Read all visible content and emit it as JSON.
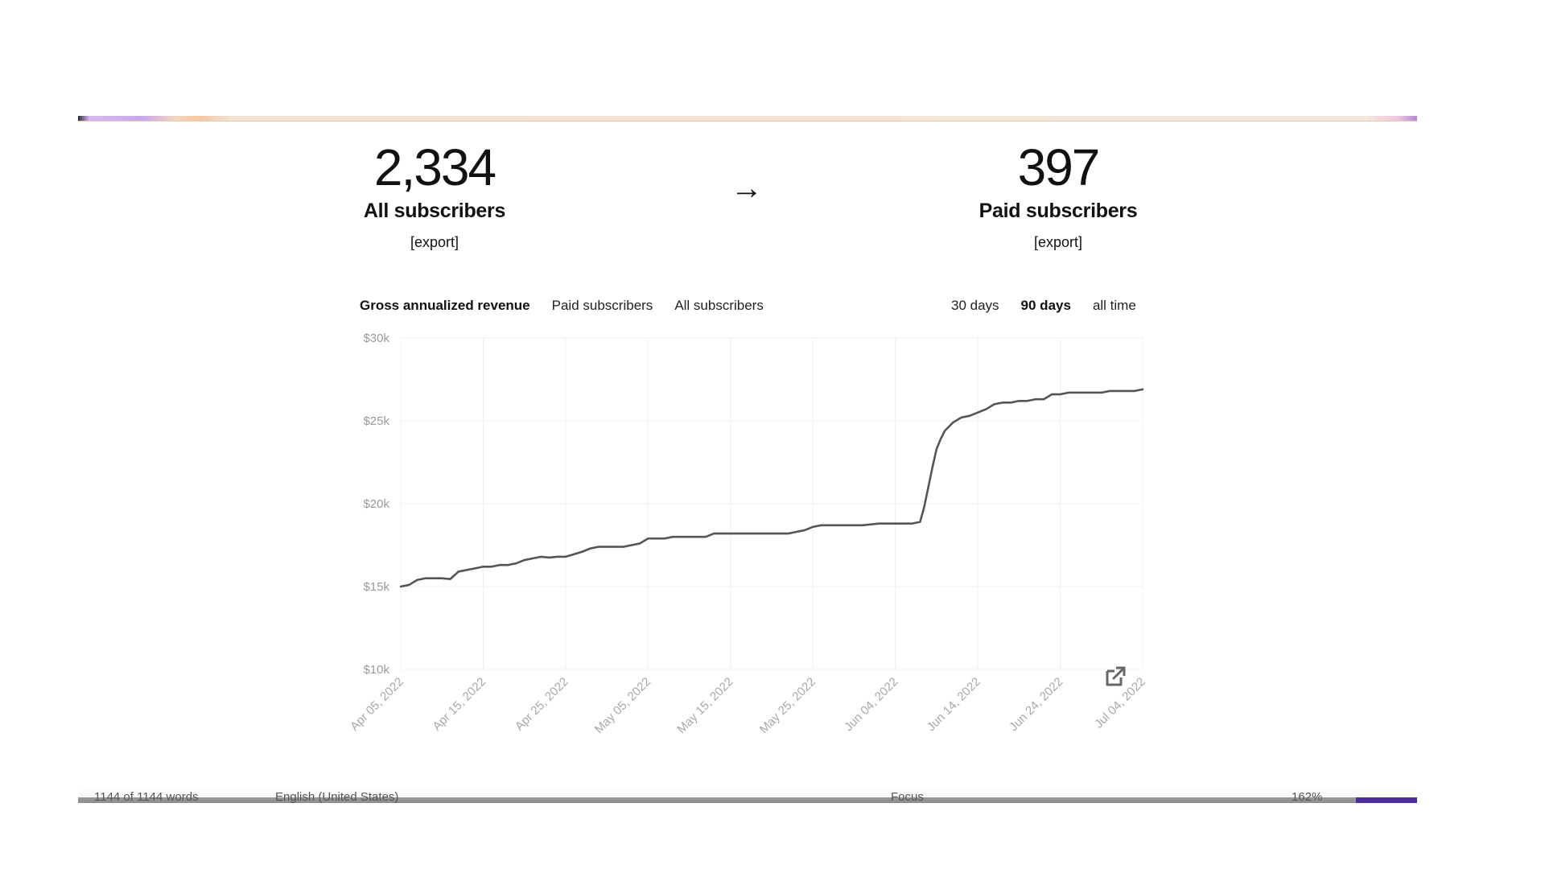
{
  "stats": {
    "all": {
      "value": "2,334",
      "label": "All subscribers",
      "export": "[export]"
    },
    "arrow": "→",
    "paid": {
      "value": "397",
      "label": "Paid subscribers",
      "export": "[export]"
    }
  },
  "tabs": {
    "metrics": [
      "Gross annualized revenue",
      "Paid subscribers",
      "All subscribers"
    ],
    "active_metric": 0,
    "ranges": [
      "30 days",
      "90 days",
      "all time"
    ],
    "active_range": 1
  },
  "status": {
    "words": "1144 of 1144 words",
    "lang": "English (United States)",
    "focus": "Focus",
    "zoom": "162%"
  },
  "chart_data": {
    "type": "line",
    "title": "Gross annualized revenue",
    "ylabel": "",
    "xlabel": "",
    "ylim": [
      10000,
      30000
    ],
    "yticks": [
      "$10k",
      "$15k",
      "$20k",
      "$25k",
      "$30k"
    ],
    "ytick_values": [
      10000,
      15000,
      20000,
      25000,
      30000
    ],
    "xticks": [
      "Apr 05, 2022",
      "Apr 15, 2022",
      "Apr 25, 2022",
      "May 05, 2022",
      "May 15, 2022",
      "May 25, 2022",
      "Jun 04, 2022",
      "Jun 14, 2022",
      "Jun 24, 2022",
      "Jul 04, 2022"
    ],
    "xtick_days": [
      0,
      10,
      20,
      30,
      40,
      50,
      60,
      70,
      80,
      90
    ],
    "series": [
      {
        "name": "Gross annualized revenue",
        "days": [
          0,
          1,
          2,
          3,
          4,
          5,
          6,
          7,
          8,
          9,
          10,
          11,
          12,
          13,
          14,
          15,
          16,
          17,
          18,
          19,
          20,
          21,
          22,
          23,
          24,
          25,
          26,
          27,
          28,
          29,
          30,
          31,
          32,
          33,
          34,
          35,
          36,
          37,
          38,
          39,
          40,
          42,
          44,
          46,
          47,
          48,
          49,
          50,
          51,
          52,
          54,
          56,
          58,
          59,
          60,
          61,
          62,
          63,
          63.5,
          64,
          64.5,
          65,
          65.5,
          66,
          67,
          68,
          69,
          70,
          71,
          72,
          73,
          74,
          75,
          76,
          77,
          78,
          79,
          80,
          81,
          82,
          83,
          84,
          85,
          86,
          87,
          88,
          89,
          90
        ],
        "values": [
          15000,
          15100,
          15400,
          15500,
          15500,
          15500,
          15450,
          15900,
          16000,
          16100,
          16200,
          16200,
          16300,
          16300,
          16400,
          16600,
          16700,
          16800,
          16750,
          16800,
          16800,
          16950,
          17100,
          17300,
          17400,
          17400,
          17400,
          17400,
          17500,
          17600,
          17900,
          17900,
          17900,
          18000,
          18000,
          18000,
          18000,
          18000,
          18200,
          18200,
          18200,
          18200,
          18200,
          18200,
          18200,
          18300,
          18400,
          18600,
          18700,
          18700,
          18700,
          18700,
          18800,
          18800,
          18800,
          18800,
          18800,
          18900,
          19800,
          21000,
          22200,
          23300,
          23900,
          24400,
          24900,
          25200,
          25300,
          25500,
          25700,
          26000,
          26100,
          26100,
          26200,
          26200,
          26300,
          26300,
          26600,
          26600,
          26700,
          26700,
          26700,
          26700,
          26700,
          26800,
          26800,
          26800,
          26800,
          26900
        ]
      }
    ]
  }
}
